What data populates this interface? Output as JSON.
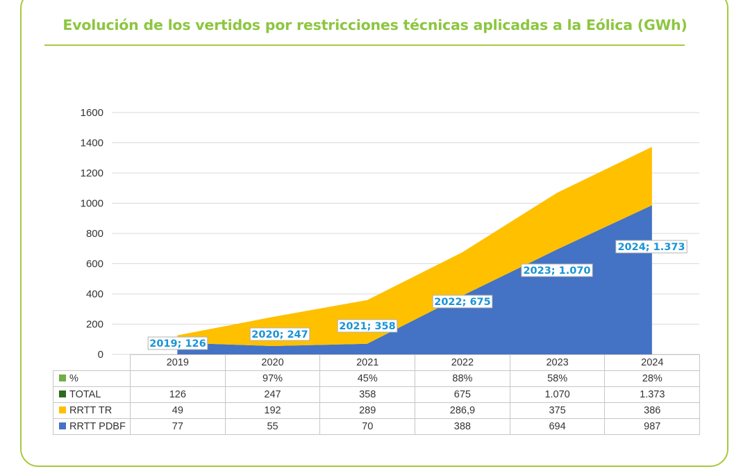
{
  "title": "Evolución de los vertidos por restricciones técnicas aplicadas a la Eólica (GWh)",
  "colors": {
    "frame": "#a8c83c",
    "title": "#8cc63f",
    "pdbf": "#4472c4",
    "tr": "#ffc000",
    "total": "#2e6b1f",
    "pct": "#70ad47",
    "label_text": "#1a94d6"
  },
  "chart_data": {
    "type": "area",
    "stacked": true,
    "categories": [
      "2019",
      "2020",
      "2021",
      "2022",
      "2023",
      "2024"
    ],
    "ylim": [
      0,
      1600
    ],
    "yticks": [
      "0",
      "200",
      "400",
      "600",
      "800",
      "1000",
      "1200",
      "1400",
      "1600"
    ],
    "grid": true,
    "series": [
      {
        "name": "RRTT PDBF",
        "color": "#4472c4",
        "values": [
          77,
          55,
          70,
          388,
          694,
          987
        ]
      },
      {
        "name": "RRTT TR",
        "color": "#ffc000",
        "values": [
          49,
          192,
          289,
          286.9,
          375,
          386
        ]
      }
    ],
    "data_labels": [
      "2019; 126",
      "2020; 247",
      "2021; 358",
      "2022; 675",
      "2023; 1.070",
      "2024; 1.373"
    ],
    "data_label_values": [
      126,
      247,
      358,
      675,
      1070,
      1373
    ],
    "table": {
      "rows": [
        {
          "name": "%",
          "swatch": "#70ad47",
          "cells": [
            "",
            "97%",
            "45%",
            "88%",
            "58%",
            "28%"
          ]
        },
        {
          "name": "TOTAL",
          "swatch": "#2e6b1f",
          "cells": [
            "126",
            "247",
            "358",
            "675",
            "1.070",
            "1.373"
          ]
        },
        {
          "name": "RRTT TR",
          "swatch": "#ffc000",
          "cells": [
            "49",
            "192",
            "289",
            "286,9",
            "375",
            "386"
          ]
        },
        {
          "name": "RRTT PDBF",
          "swatch": "#4472c4",
          "cells": [
            "77",
            "55",
            "70",
            "388",
            "694",
            "987"
          ]
        }
      ]
    }
  }
}
